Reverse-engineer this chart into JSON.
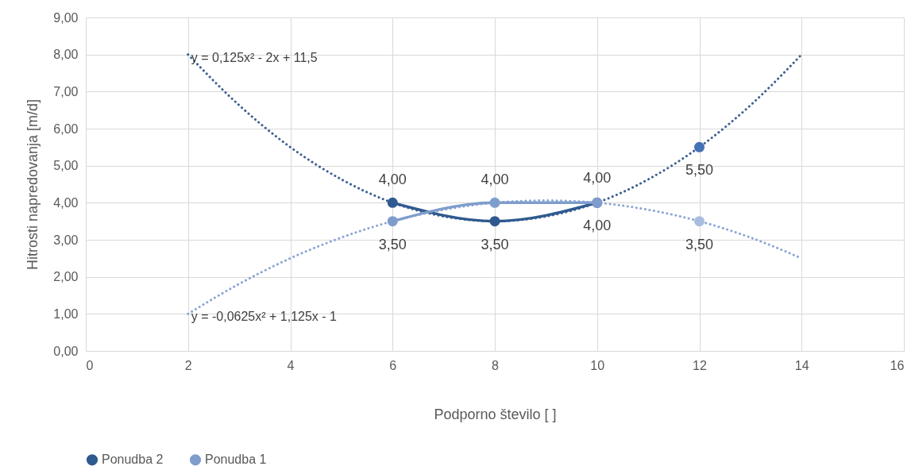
{
  "chart_data": {
    "type": "line",
    "xlabel": "Podporno število [ ]",
    "ylabel": "Hitrosti napredovanja [m/d]",
    "xlim": [
      0,
      16
    ],
    "xticks": [
      0,
      2,
      4,
      6,
      8,
      10,
      12,
      14,
      16
    ],
    "ylim": [
      0,
      9
    ],
    "yticks": [
      {
        "value": 0,
        "label": "0,00"
      },
      {
        "value": 1,
        "label": "1,00"
      },
      {
        "value": 2,
        "label": "2,00"
      },
      {
        "value": 3,
        "label": "3,00"
      },
      {
        "value": 4,
        "label": "4,00"
      },
      {
        "value": 5,
        "label": "5,00"
      },
      {
        "value": 6,
        "label": "6,00"
      },
      {
        "value": 7,
        "label": "7,00"
      },
      {
        "value": 8,
        "label": "8,00"
      },
      {
        "value": 9,
        "label": "9,00"
      }
    ],
    "grid": true,
    "legend": "bottom",
    "marker": "circle",
    "series": [
      {
        "name": "Ponudba 2",
        "type": "line",
        "color": "#2f5a8f",
        "x": [
          6,
          8,
          10
        ],
        "values": [
          4,
          3.5,
          4
        ],
        "value_labels": [
          "4,00",
          "3,50",
          "4,00"
        ]
      },
      {
        "name": "Ponudba 1",
        "type": "line",
        "color": "#7f9dcc",
        "x": [
          6,
          8,
          10
        ],
        "values": [
          3.5,
          4,
          4
        ],
        "value_labels": [
          "3,50",
          "4,00",
          "4,00"
        ]
      },
      {
        "type": "scatter",
        "color": "#4472b4",
        "x": [
          12
        ],
        "values": [
          5.5
        ],
        "value_labels": [
          "5,50"
        ]
      },
      {
        "type": "scatter",
        "color": "#a9bde0",
        "x": [
          12
        ],
        "values": [
          3.5
        ],
        "value_labels": [
          "3,50"
        ]
      },
      {
        "type": "line",
        "color": "#3d5f92",
        "marker": "none",
        "line_style": "dotted",
        "x": [
          2,
          3,
          4,
          5,
          6,
          7,
          8,
          9,
          10,
          11,
          12,
          13,
          14
        ],
        "values": [
          8,
          6.63,
          5.5,
          4.63,
          4,
          3.63,
          3.5,
          3.63,
          4,
          4.63,
          5.5,
          6.63,
          8
        ]
      },
      {
        "type": "line",
        "color": "#8aa6d4",
        "marker": "none",
        "line_style": "dotted",
        "x": [
          2,
          3,
          4,
          5,
          6,
          7,
          8,
          9,
          10,
          11,
          12,
          13,
          14
        ],
        "values": [
          1,
          1.81,
          2.5,
          3.06,
          3.5,
          3.81,
          4,
          4.06,
          4,
          3.81,
          3.5,
          3.06,
          2.5
        ]
      }
    ],
    "annotations": [
      {
        "text": "y = 0,125x² - 2x + 11,5",
        "x": 2,
        "y": 8
      },
      {
        "text": "y = -0,0625x² + 1,125x - 1",
        "x": 2,
        "y": 1
      }
    ]
  }
}
